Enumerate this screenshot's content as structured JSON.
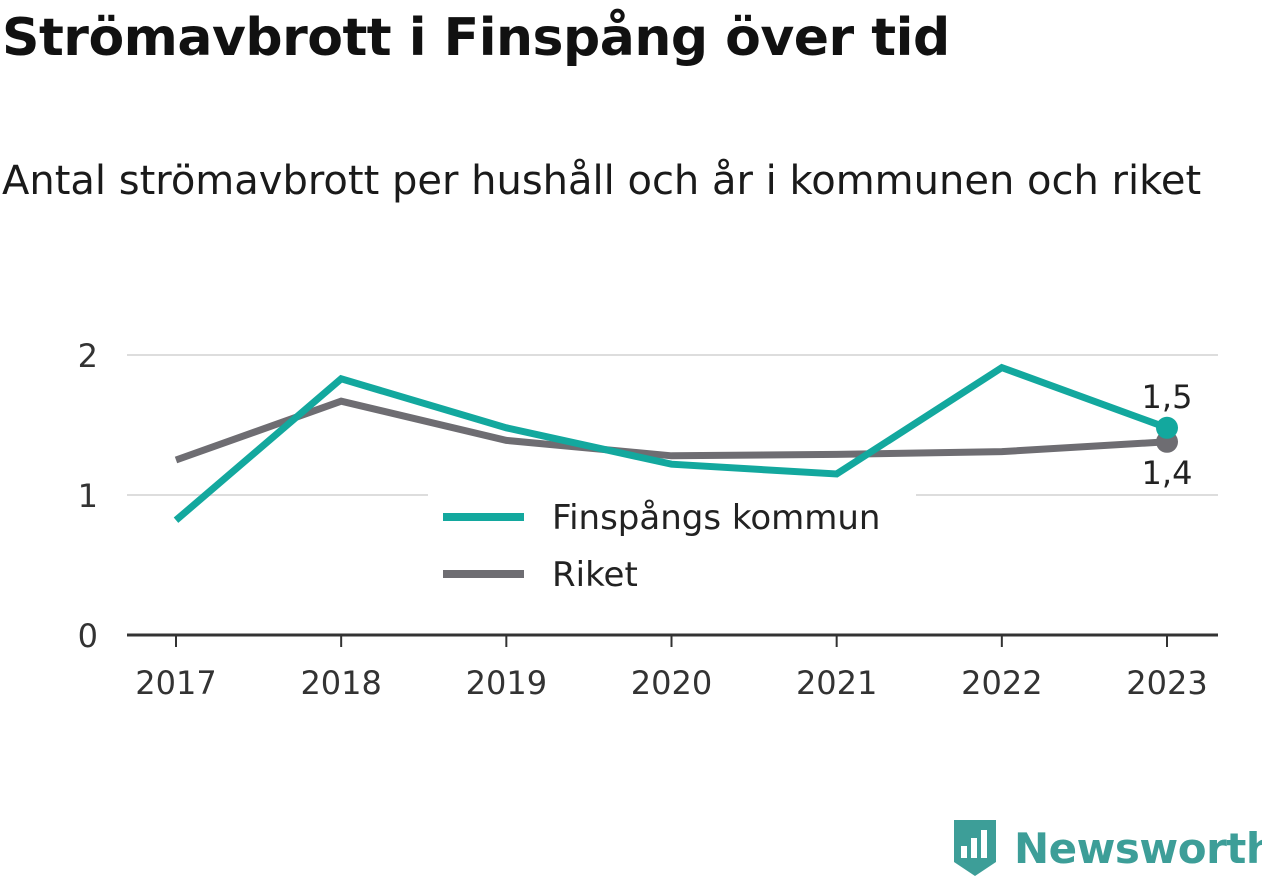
{
  "header": {
    "title": "Strömavbrott i Finspång över tid",
    "subtitle": "Antal strömavbrott per hushåll och år i kommunen och riket"
  },
  "branding": {
    "name": "Newsworthy",
    "icon": "newsworthy-logo-icon",
    "color": "#3d9e98"
  },
  "chart_data": {
    "type": "line",
    "title": "Strömavbrott i Finspång över tid",
    "subtitle": "Antal strömavbrott per hushåll och år i kommunen och riket",
    "xlabel": "",
    "ylabel": "",
    "x": [
      "2017",
      "2018",
      "2019",
      "2020",
      "2021",
      "2022",
      "2023"
    ],
    "ylim": [
      0,
      2
    ],
    "yticks": [
      "0",
      "1",
      "2"
    ],
    "grid": true,
    "legend": "center",
    "series": [
      {
        "name": "Finspångs kommun",
        "color": "#13a89e",
        "values": [
          0.82,
          1.83,
          1.48,
          1.22,
          1.15,
          1.91,
          1.48
        ],
        "end_label": "1,5"
      },
      {
        "name": "Riket",
        "color": "#6e6d72",
        "values": [
          1.25,
          1.67,
          1.39,
          1.28,
          1.29,
          1.31,
          1.38
        ],
        "end_label": "1,4"
      }
    ]
  }
}
